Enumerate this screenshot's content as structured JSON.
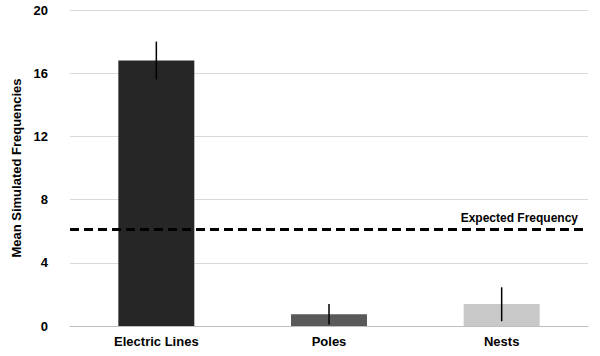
{
  "chart_data": {
    "type": "bar",
    "y_label": "Mean Simulated Frequencies",
    "categories": [
      "Electric Lines",
      "Poles",
      "Nests"
    ],
    "values": [
      16.8,
      0.75,
      1.4
    ],
    "error_low": [
      15.6,
      0.1,
      0.3
    ],
    "error_high": [
      18.0,
      1.4,
      2.45
    ],
    "colors": [
      "#262626",
      "#595959",
      "#c8c8c8"
    ],
    "reference_line": {
      "value": 6.1,
      "label": "Expected Frequency"
    },
    "ylim": [
      0,
      20
    ],
    "yticks": [
      0,
      4,
      8,
      12,
      16,
      20
    ],
    "grid": true
  }
}
